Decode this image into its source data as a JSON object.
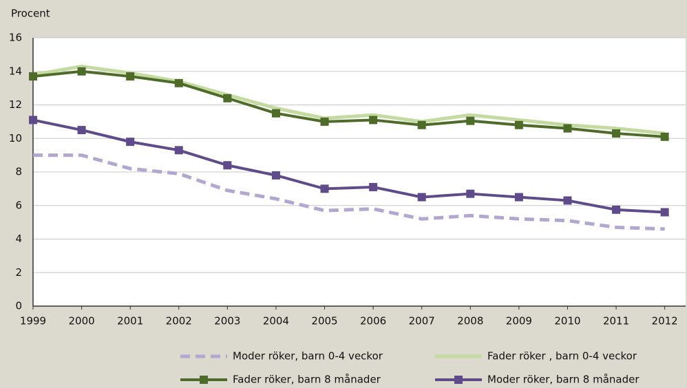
{
  "chart_data": {
    "type": "line",
    "ylabel": "Procent",
    "x": [
      1999,
      2000,
      2001,
      2002,
      2003,
      2004,
      2005,
      2006,
      2007,
      2008,
      2009,
      2010,
      2011,
      2012
    ],
    "xlim": [
      1999,
      2012.43
    ],
    "xticks": [
      1999,
      2000,
      2001,
      2002,
      2003,
      2004,
      2005,
      2006,
      2007,
      2008,
      2009,
      2010,
      2011,
      2012
    ],
    "ylim": [
      0,
      16
    ],
    "yticks": [
      0,
      2,
      4,
      6,
      8,
      10,
      12,
      14,
      16
    ],
    "grid": true,
    "series": [
      {
        "name": "Moder röker, barn 0-4 veckor",
        "color": "#b3a6cf",
        "dashed": true,
        "markers": false,
        "values": [
          9.0,
          9.0,
          8.2,
          7.9,
          6.9,
          6.4,
          5.7,
          5.8,
          5.2,
          5.4,
          5.2,
          5.1,
          4.7,
          4.6
        ]
      },
      {
        "name": "Fader röker , barn 0-4 veckor",
        "color": "#c3dba0",
        "dashed": false,
        "markers": false,
        "values": [
          13.8,
          14.3,
          13.9,
          13.4,
          12.6,
          11.8,
          11.2,
          11.4,
          11.0,
          11.4,
          11.1,
          10.8,
          10.6,
          10.3
        ]
      },
      {
        "name": "Fader röker, barn 8 månader",
        "color": "#4e6b2a",
        "dashed": false,
        "markers": true,
        "values": [
          13.7,
          14.0,
          13.7,
          13.3,
          12.4,
          11.5,
          11.0,
          11.1,
          10.8,
          11.05,
          10.8,
          10.6,
          10.3,
          10.1
        ]
      },
      {
        "name": "Moder röker, barn 8 månader",
        "color": "#5f4a8a",
        "dashed": false,
        "markers": true,
        "values": [
          11.1,
          10.5,
          9.8,
          9.3,
          8.4,
          7.8,
          7.0,
          7.1,
          6.5,
          6.7,
          6.5,
          6.3,
          5.75,
          5.6
        ]
      }
    ]
  }
}
